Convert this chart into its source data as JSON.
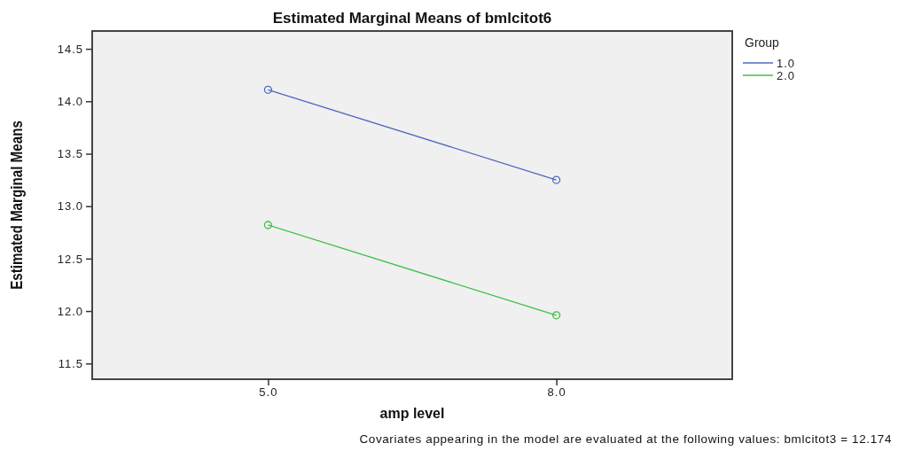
{
  "chart_data": {
    "type": "line",
    "title": "Estimated Marginal Means of bmlcitot6",
    "xlabel": "amp level",
    "ylabel": "Estimated Marginal Means",
    "legend_title": "Group",
    "categories": [
      "5.0",
      "8.0"
    ],
    "series": [
      {
        "name": "1.0",
        "color": "#5068c0",
        "values": [
          14.11,
          13.25
        ]
      },
      {
        "name": "2.0",
        "color": "#3cbf48",
        "values": [
          12.82,
          11.96
        ]
      }
    ],
    "ylim": [
      11.35,
      14.67
    ],
    "yticks": [
      {
        "value": 11.5,
        "label": "11.5"
      },
      {
        "value": 12,
        "label": "12.0"
      },
      {
        "value": 12.5,
        "label": "12.5"
      },
      {
        "value": 13,
        "label": "13.0"
      },
      {
        "value": 13.5,
        "label": "13.5"
      },
      {
        "value": 14,
        "label": "14.0"
      },
      {
        "value": 14.5,
        "label": "14.5"
      }
    ],
    "legend": "top right",
    "marker": "circle",
    "grid": false,
    "annotations": [
      "Covariates appearing in the model are evaluated at the following values: bmlcitot3 = 12.174"
    ]
  }
}
